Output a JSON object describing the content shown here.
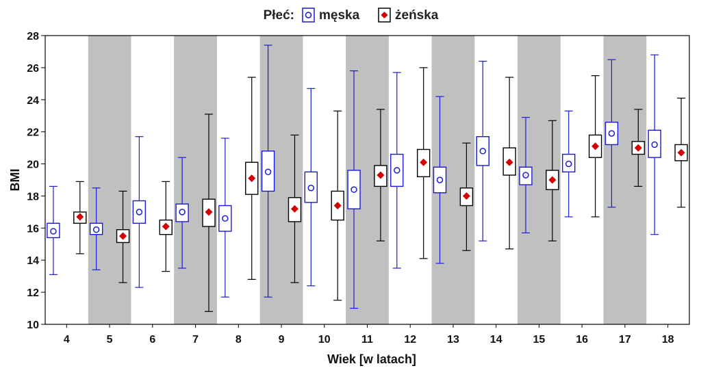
{
  "chart_data": {
    "type": "boxplot",
    "legend": {
      "title": "Płeć:",
      "placement": "top-center",
      "entries": [
        {
          "name": "męska",
          "marker": "circle",
          "color": "#1a1ad6"
        },
        {
          "name": "żeńska",
          "marker": "diamond",
          "color": "#000000",
          "marker_fill": "#d40000"
        }
      ]
    },
    "xlabel": "Wiek [w latach]",
    "ylabel": "BMI",
    "ylim": [
      10,
      28
    ],
    "yticks": [
      10,
      12,
      14,
      16,
      18,
      20,
      22,
      24,
      26,
      28
    ],
    "categories": [
      "4",
      "5",
      "6",
      "7",
      "8",
      "9",
      "10",
      "11",
      "12",
      "13",
      "14",
      "15",
      "16",
      "17",
      "18"
    ],
    "shaded_categories": [
      "5",
      "7",
      "9",
      "11",
      "13",
      "15",
      "17"
    ],
    "colors": {
      "male": "#1a1ad6",
      "female": "#000000",
      "female_marker": "#d40000",
      "shade": "#c0c0c0"
    },
    "series": [
      {
        "name": "męska",
        "stats": [
          {
            "min": 13.1,
            "q1": 15.4,
            "median": 15.8,
            "q3": 16.3,
            "max": 18.6
          },
          {
            "min": 13.4,
            "q1": 15.6,
            "median": 15.9,
            "q3": 16.3,
            "max": 18.5
          },
          {
            "min": 12.3,
            "q1": 16.3,
            "median": 17.0,
            "q3": 17.7,
            "max": 21.7
          },
          {
            "min": 13.5,
            "q1": 16.4,
            "median": 17.0,
            "q3": 17.5,
            "max": 20.4
          },
          {
            "min": 11.7,
            "q1": 15.8,
            "median": 16.6,
            "q3": 17.4,
            "max": 21.6
          },
          {
            "min": 11.7,
            "q1": 18.3,
            "median": 19.5,
            "q3": 20.8,
            "max": 27.4
          },
          {
            "min": 12.4,
            "q1": 17.6,
            "median": 18.5,
            "q3": 19.5,
            "max": 24.7
          },
          {
            "min": 11.0,
            "q1": 17.2,
            "median": 18.4,
            "q3": 19.6,
            "max": 25.8
          },
          {
            "min": 13.5,
            "q1": 18.6,
            "median": 19.6,
            "q3": 20.6,
            "max": 25.7
          },
          {
            "min": 13.8,
            "q1": 18.2,
            "median": 19.0,
            "q3": 19.8,
            "max": 24.2
          },
          {
            "min": 15.2,
            "q1": 19.9,
            "median": 20.8,
            "q3": 21.7,
            "max": 26.4
          },
          {
            "min": 15.7,
            "q1": 18.7,
            "median": 19.3,
            "q3": 19.8,
            "max": 22.9
          },
          {
            "min": 16.7,
            "q1": 19.5,
            "median": 20.0,
            "q3": 20.6,
            "max": 23.3
          },
          {
            "min": 17.3,
            "q1": 21.2,
            "median": 21.9,
            "q3": 22.6,
            "max": 26.5
          },
          {
            "min": 15.6,
            "q1": 20.4,
            "median": 21.2,
            "q3": 22.1,
            "max": 26.8
          }
        ]
      },
      {
        "name": "żeńska",
        "stats": [
          {
            "min": 14.4,
            "q1": 16.3,
            "median": 16.7,
            "q3": 17.0,
            "max": 18.9
          },
          {
            "min": 12.6,
            "q1": 15.1,
            "median": 15.5,
            "q3": 15.9,
            "max": 18.3
          },
          {
            "min": 13.3,
            "q1": 15.6,
            "median": 16.1,
            "q3": 16.5,
            "max": 18.9
          },
          {
            "min": 10.8,
            "q1": 16.1,
            "median": 17.0,
            "q3": 17.8,
            "max": 23.1
          },
          {
            "min": 12.8,
            "q1": 18.1,
            "median": 19.1,
            "q3": 20.1,
            "max": 25.4
          },
          {
            "min": 12.6,
            "q1": 16.4,
            "median": 17.2,
            "q3": 17.9,
            "max": 21.8
          },
          {
            "min": 11.5,
            "q1": 16.5,
            "median": 17.4,
            "q3": 18.3,
            "max": 23.3
          },
          {
            "min": 15.2,
            "q1": 18.6,
            "median": 19.3,
            "q3": 19.9,
            "max": 23.4
          },
          {
            "min": 14.1,
            "q1": 19.2,
            "median": 20.1,
            "q3": 20.9,
            "max": 26.0
          },
          {
            "min": 14.6,
            "q1": 17.4,
            "median": 18.0,
            "q3": 18.5,
            "max": 21.3
          },
          {
            "min": 14.7,
            "q1": 19.3,
            "median": 20.1,
            "q3": 21.0,
            "max": 25.4
          },
          {
            "min": 15.2,
            "q1": 18.4,
            "median": 19.0,
            "q3": 19.6,
            "max": 22.7
          },
          {
            "min": 16.7,
            "q1": 20.4,
            "median": 21.1,
            "q3": 21.8,
            "max": 25.5
          },
          {
            "min": 18.6,
            "q1": 20.6,
            "median": 21.0,
            "q3": 21.4,
            "max": 23.4
          },
          {
            "min": 17.3,
            "q1": 20.2,
            "median": 20.7,
            "q3": 21.2,
            "max": 24.1
          }
        ]
      }
    ]
  }
}
